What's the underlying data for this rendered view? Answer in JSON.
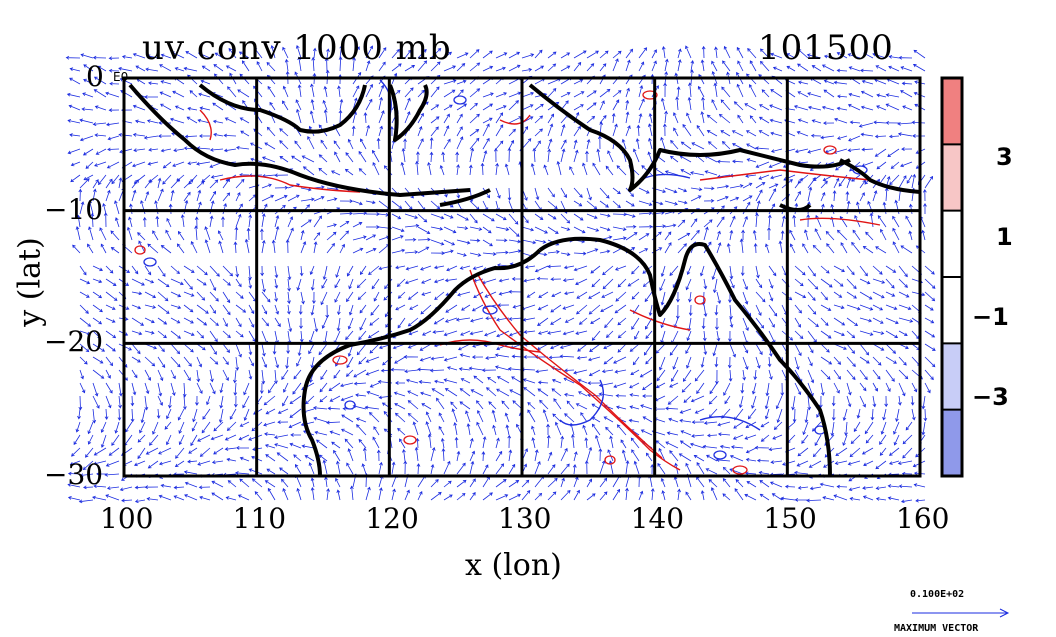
{
  "title": "uv conv 1000 mb",
  "time_label": "101500",
  "xlabel": "x (lon)",
  "ylabel": "y (lat)",
  "x_ticks": [
    "100",
    "110",
    "120",
    "130",
    "140",
    "150",
    "160"
  ],
  "y_ticks": [
    "0",
    "−10",
    "−20",
    "−30"
  ],
  "y_tick_values": [
    0,
    -10,
    -20,
    -30
  ],
  "x_tick_values": [
    100,
    110,
    120,
    130,
    140,
    150,
    160
  ],
  "origin_fragment": "E0",
  "colorbar": {
    "ticks": [
      "3",
      "1",
      "−1",
      "−3"
    ],
    "colors": [
      "#f08080",
      "#f7c6c6",
      "#ffffff",
      "#ffffff",
      "#c8cdf7",
      "#8f99ea"
    ]
  },
  "reference_vector": {
    "value": "0.100E+02",
    "label": "MAXIMUM VECTOR"
  },
  "colors": {
    "vector": "#1a2be0",
    "contour_positive": "#e01515",
    "contour_negative": "#2030e0",
    "coast": "#000000"
  },
  "chart_data": {
    "type": "vector-field",
    "xlim": [
      100,
      160
    ],
    "ylim": [
      -30,
      0
    ],
    "grid": true,
    "contour_levels": [
      -3,
      -1,
      1,
      3
    ]
  }
}
